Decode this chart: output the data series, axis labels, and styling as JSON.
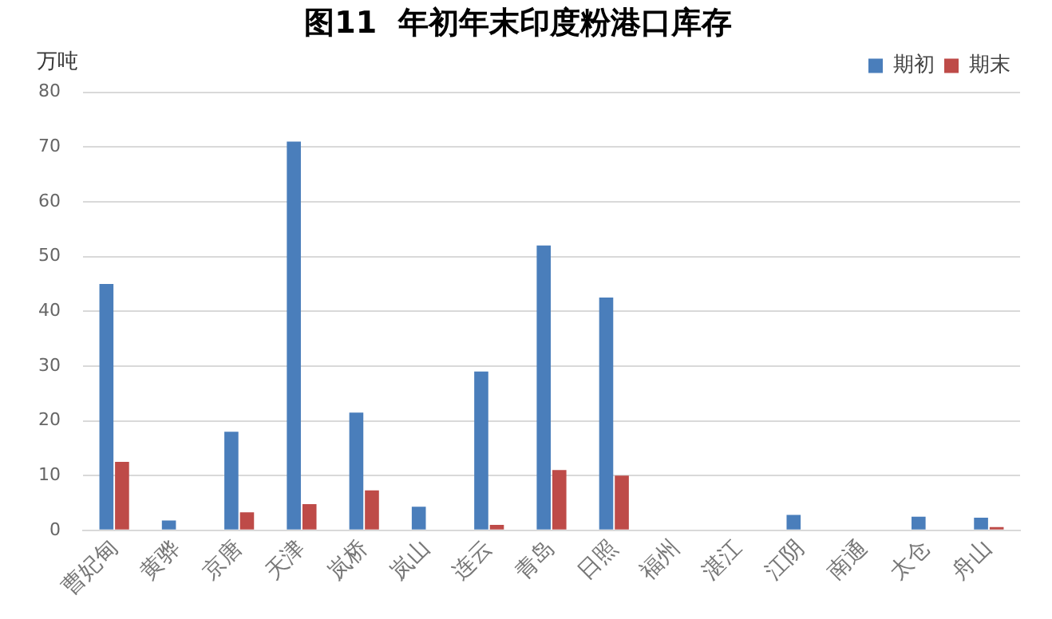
{
  "chart_data": {
    "type": "bar",
    "title": "图11  年初年末印度粉港口库存",
    "ylabel": "万吨",
    "categories": [
      "曹妃甸",
      "黄骅",
      "京唐",
      "天津",
      "岚桥",
      "岚山",
      "连云",
      "青岛",
      "日照",
      "福州",
      "湛江",
      "江阴",
      "南通",
      "太仓",
      "舟山"
    ],
    "series": [
      {
        "name": "期初",
        "color": "#4a7ebb",
        "values": [
          45,
          1.8,
          18,
          71,
          21.5,
          4.3,
          29,
          52,
          42.5,
          0,
          0,
          2.8,
          0,
          2.5,
          2.3
        ]
      },
      {
        "name": "期末",
        "color": "#be4b48",
        "values": [
          12.5,
          0,
          3.3,
          4.8,
          7.3,
          0,
          1,
          11,
          10,
          0,
          0,
          0,
          0,
          0,
          0.6
        ]
      }
    ],
    "ylim": [
      0,
      80
    ],
    "yticks": [
      0,
      10,
      20,
      30,
      40,
      50,
      60,
      70,
      80
    ],
    "grid": "y",
    "legend": "top right"
  }
}
